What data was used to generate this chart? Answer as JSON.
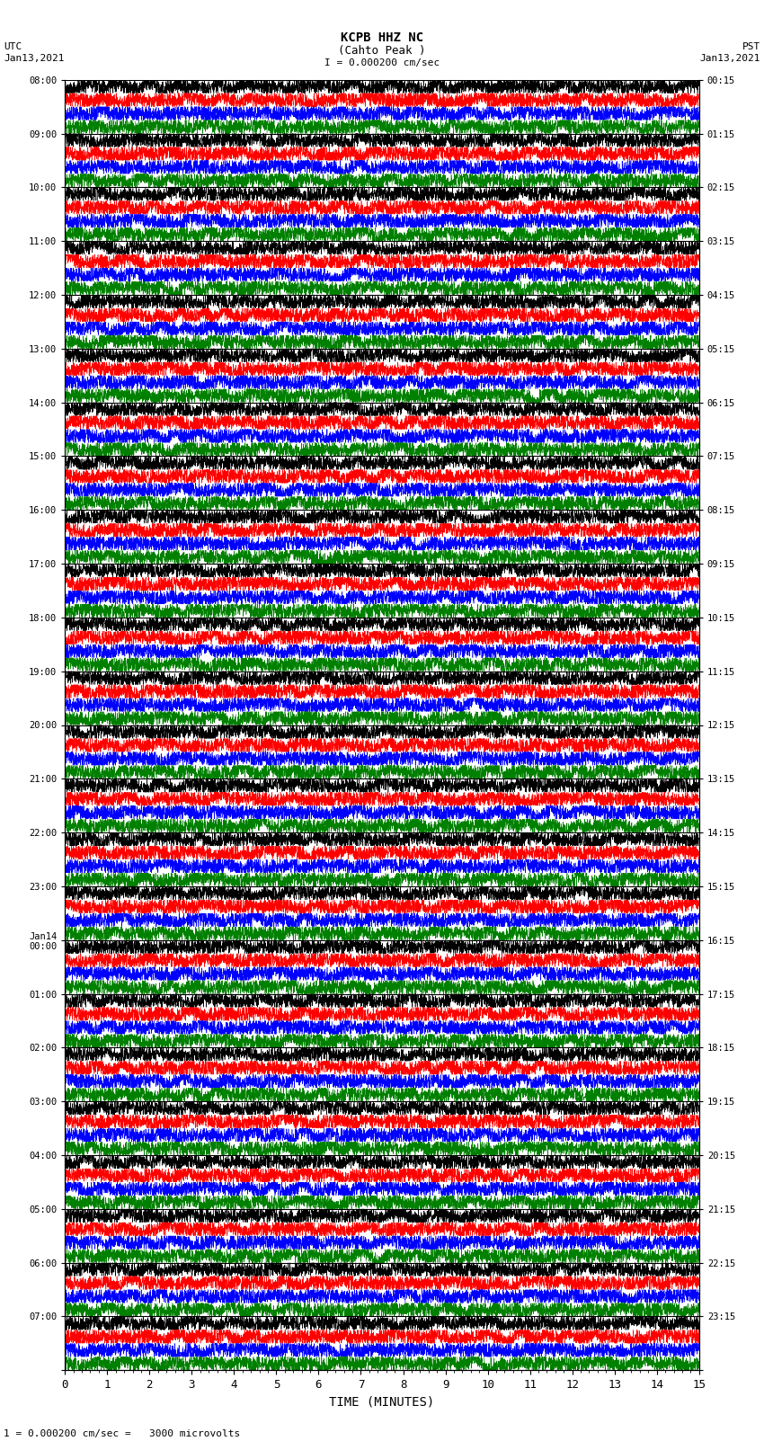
{
  "title_line1": "KCPB HHZ NC",
  "title_line2": "(Cahto Peak )",
  "scale_label": "I = 0.000200 cm/sec",
  "bottom_label": "1 = 0.000200 cm/sec =   3000 microvolts",
  "utc_label": "UTC",
  "pst_label": "PST",
  "date_left": "Jan13,2021",
  "date_right": "Jan13,2021",
  "xlabel": "TIME (MINUTES)",
  "xlim": [
    0,
    15
  ],
  "xticks": [
    0,
    1,
    2,
    3,
    4,
    5,
    6,
    7,
    8,
    9,
    10,
    11,
    12,
    13,
    14,
    15
  ],
  "left_times": [
    "08:00",
    "09:00",
    "10:00",
    "11:00",
    "12:00",
    "13:00",
    "14:00",
    "15:00",
    "16:00",
    "17:00",
    "18:00",
    "19:00",
    "20:00",
    "21:00",
    "22:00",
    "23:00",
    "Jan14\n00:00",
    "01:00",
    "02:00",
    "03:00",
    "04:00",
    "05:00",
    "06:00",
    "07:00"
  ],
  "right_times": [
    "00:15",
    "01:15",
    "02:15",
    "03:15",
    "04:15",
    "05:15",
    "06:15",
    "07:15",
    "08:15",
    "09:15",
    "10:15",
    "11:15",
    "12:15",
    "13:15",
    "14:15",
    "15:15",
    "16:15",
    "17:15",
    "18:15",
    "19:15",
    "20:15",
    "21:15",
    "22:15",
    "23:15"
  ],
  "n_hours": 24,
  "colors": [
    "black",
    "red",
    "blue",
    "green"
  ],
  "fig_width": 8.5,
  "fig_height": 16.13,
  "dpi": 100,
  "background_color": "white",
  "line_width": 0.4,
  "seed": 42
}
